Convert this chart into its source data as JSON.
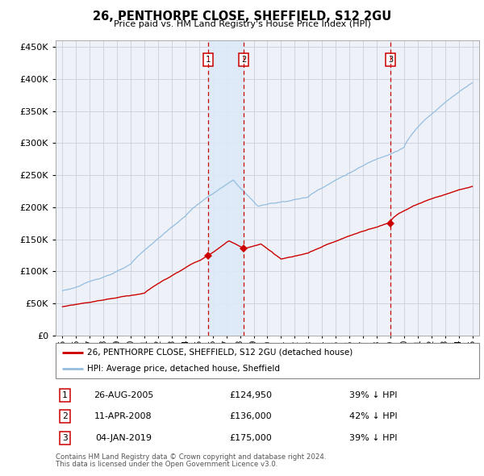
{
  "title": "26, PENTHORPE CLOSE, SHEFFIELD, S12 2GU",
  "subtitle": "Price paid vs. HM Land Registry's House Price Index (HPI)",
  "footer1": "Contains HM Land Registry data © Crown copyright and database right 2024.",
  "footer2": "This data is licensed under the Open Government Licence v3.0.",
  "legend_label_red": "26, PENTHORPE CLOSE, SHEFFIELD, S12 2GU (detached house)",
  "legend_label_blue": "HPI: Average price, detached house, Sheffield",
  "table_rows": [
    {
      "num": "1",
      "date": "26-AUG-2005",
      "price": "£124,950",
      "pct": "39% ↓ HPI"
    },
    {
      "num": "2",
      "date": "11-APR-2008",
      "price": "£136,000",
      "pct": "42% ↓ HPI"
    },
    {
      "num": "3",
      "date": "04-JAN-2019",
      "price": "£175,000",
      "pct": "39% ↓ HPI"
    }
  ],
  "sales": [
    {
      "date_num": 2005.65,
      "price": 124950
    },
    {
      "date_num": 2008.27,
      "price": 136000
    },
    {
      "date_num": 2019.01,
      "price": 175000
    }
  ],
  "vline_dates": [
    2005.65,
    2008.27,
    2019.01
  ],
  "hpi_color": "#94bde0",
  "sale_color": "#cc0000",
  "vline_color": "#cc0000",
  "span_color": "#ddeaf7",
  "plot_bg": "#eef2f8",
  "ylim": [
    0,
    460000
  ],
  "yticks": [
    0,
    50000,
    100000,
    150000,
    200000,
    250000,
    300000,
    350000,
    400000,
    450000
  ],
  "xlim": [
    1994.5,
    2025.5
  ],
  "xtick_years": [
    1995,
    1996,
    1997,
    1998,
    1999,
    2000,
    2001,
    2002,
    2003,
    2004,
    2005,
    2006,
    2007,
    2008,
    2009,
    2010,
    2011,
    2012,
    2013,
    2014,
    2015,
    2016,
    2017,
    2018,
    2019,
    2020,
    2021,
    2022,
    2023,
    2024,
    2025
  ]
}
